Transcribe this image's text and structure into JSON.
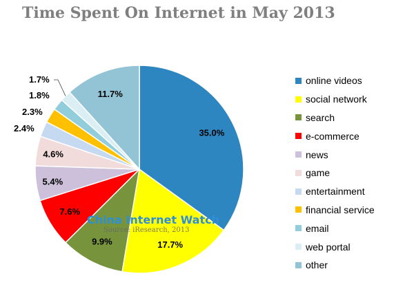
{
  "chart_data": {
    "type": "pie",
    "title": "Time Spent On Internet in May 2013",
    "start_angle": "12 o'clock",
    "direction": "clockwise",
    "legend_position": "right",
    "slices": [
      {
        "label": "online videos",
        "value": 35.0,
        "display": "35.0%",
        "color": "#2e86c1"
      },
      {
        "label": "social network",
        "value": 17.7,
        "display": "17.7%",
        "color": "#ffff00"
      },
      {
        "label": "search",
        "value": 9.9,
        "display": "9.9%",
        "color": "#77933c"
      },
      {
        "label": "e-commerce",
        "value": 7.6,
        "display": "7.6%",
        "color": "#ff0000"
      },
      {
        "label": "news",
        "value": 5.4,
        "display": "5.4%",
        "color": "#ccc0da"
      },
      {
        "label": "game",
        "value": 4.6,
        "display": "4.6%",
        "color": "#f2dcdb"
      },
      {
        "label": "entertainment",
        "value": 2.4,
        "display": "2.4%",
        "color": "#c5d9f1"
      },
      {
        "label": "financial service",
        "value": 2.3,
        "display": "2.3%",
        "color": "#ffc000"
      },
      {
        "label": "email",
        "value": 1.8,
        "display": "1.8%",
        "color": "#92cddc"
      },
      {
        "label": "web portal",
        "value": 1.7,
        "display": "1.7%",
        "color": "#dbeef3"
      },
      {
        "label": "other",
        "value": 11.7,
        "display": "11.7%",
        "color": "#93c4d6"
      }
    ]
  },
  "watermark": {
    "title": "China Internet Watch",
    "source": "Source: iResearch, 2013"
  }
}
